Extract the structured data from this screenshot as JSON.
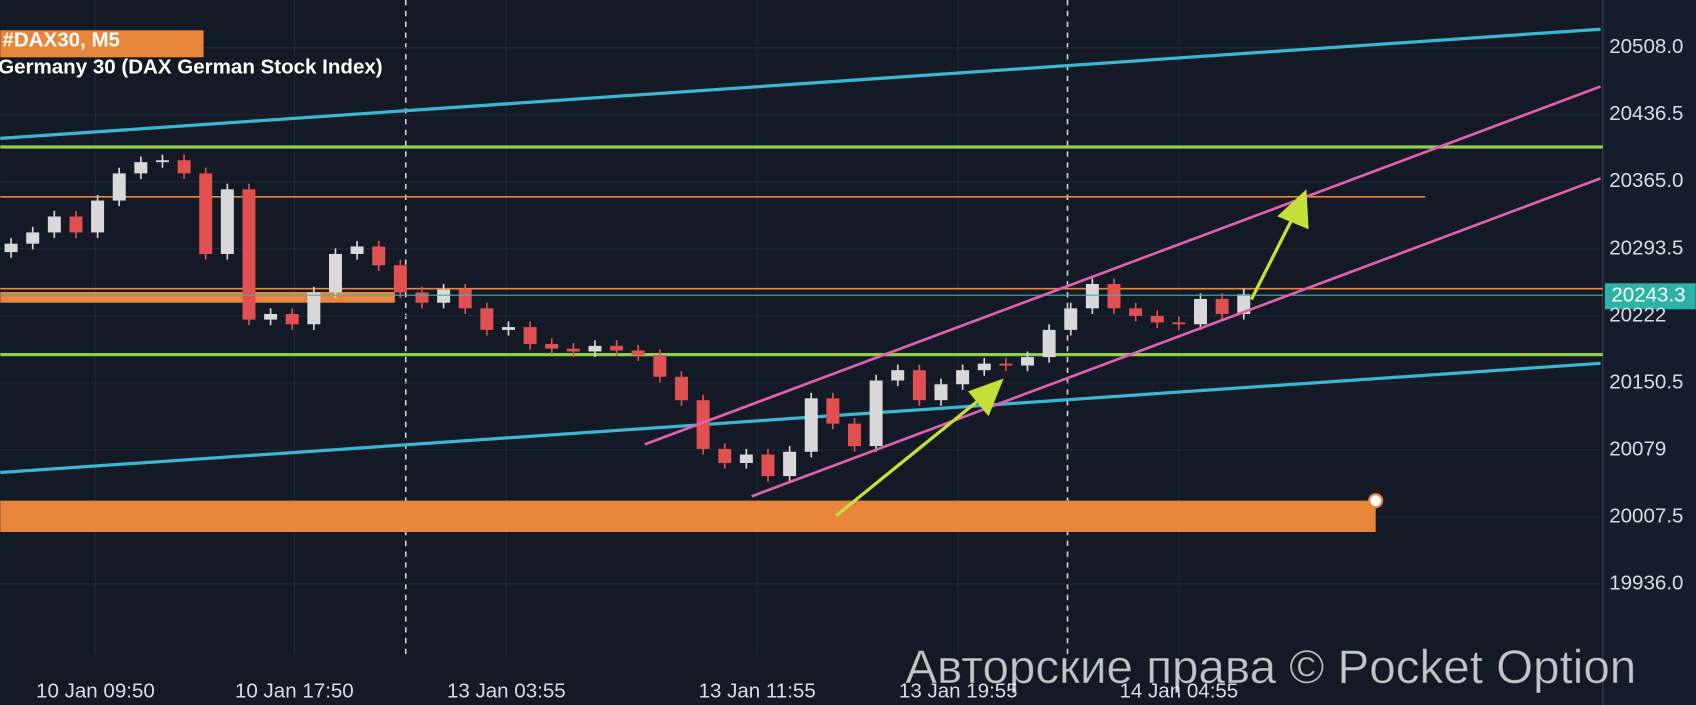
{
  "chart_data": {
    "type": "candlestick",
    "title": "#DAX30, M5",
    "subtitle": "Germany 30 (DAX German Stock Index)",
    "watermark": "Авторские права © Pocket Option",
    "current_price": 20243.3,
    "up_color": "#d9d9d9",
    "down_color": "#e05050",
    "xlim": [
      -0.5,
      73.5
    ],
    "xticks": [
      {
        "value": 3.9,
        "label": "10 Jan 09:50"
      },
      {
        "value": 13.1,
        "label": "10 Jan 17:50"
      },
      {
        "value": 22.9,
        "label": "13 Jan 03:55"
      },
      {
        "value": 34.5,
        "label": "13 Jan 11:55"
      },
      {
        "value": 43.8,
        "label": "13 Jan 19:55"
      },
      {
        "value": 54,
        "label": "14 Jan 04:55"
      }
    ],
    "ylim": [
      19861,
      20559
    ],
    "yticks": [
      {
        "value": 20508,
        "label": "20508.0"
      },
      {
        "value": 20436.5,
        "label": "20436.5"
      },
      {
        "value": 20365,
        "label": "20365.0"
      },
      20293.5,
      20222,
      {
        "value": 20222,
        "label": "20222.0"
      },
      20150.5,
      20079,
      20007.5,
      {
        "value": 19936,
        "label": "19936.0"
      }
    ],
    "open": [
      20290,
      20299,
      20311,
      20328,
      20311,
      20345,
      20374,
      20386,
      20388,
      20374,
      20288,
      20357,
      20218,
      20224,
      20213,
      20247,
      20288,
      20296,
      20276,
      20247,
      20236,
      20250,
      20230,
      20207,
      20210,
      20192,
      20187,
      20184,
      20190,
      20185,
      20180,
      20157,
      20132,
      20080,
      20065,
      20074,
      20051,
      20077,
      20134,
      20107,
      20083,
      20153,
      20164,
      20132,
      20149,
      20164,
      20171,
      20169,
      20178,
      20207,
      20230,
      20256,
      20230,
      20222,
      20215,
      20213,
      20240,
      20224
    ],
    "high": [
      20305,
      20317,
      20334,
      20334,
      20351,
      20380,
      20392,
      20394,
      20394,
      20380,
      20363,
      20363,
      20230,
      20230,
      20253,
      20294,
      20302,
      20302,
      20282,
      20253,
      20256,
      20256,
      20236,
      20216,
      20216,
      20198,
      20193,
      20196,
      20196,
      20191,
      20186,
      20163,
      20138,
      20086,
      20080,
      20080,
      20083,
      20140,
      20140,
      20113,
      20159,
      20170,
      20170,
      20155,
      20170,
      20177,
      20177,
      20184,
      20213,
      20236,
      20262,
      20262,
      20236,
      20228,
      20221,
      20246,
      20246,
      20251
    ],
    "low": [
      20284,
      20293,
      20305,
      20305,
      20305,
      20339,
      20368,
      20380,
      20368,
      20282,
      20282,
      20212,
      20212,
      20207,
      20207,
      20241,
      20282,
      20270,
      20241,
      20230,
      20230,
      20224,
      20201,
      20201,
      20186,
      20181,
      20178,
      20178,
      20179,
      20174,
      20151,
      20126,
      20074,
      20059,
      20059,
      20045,
      20045,
      20071,
      20101,
      20077,
      20077,
      20147,
      20126,
      20126,
      20143,
      20158,
      20163,
      20163,
      20172,
      20201,
      20224,
      20224,
      20216,
      20209,
      20207,
      20207,
      20218,
      20218
    ],
    "close": [
      20299,
      20311,
      20328,
      20311,
      20345,
      20374,
      20386,
      20388,
      20374,
      20288,
      20357,
      20218,
      20224,
      20213,
      20247,
      20288,
      20296,
      20276,
      20247,
      20236,
      20250,
      20230,
      20207,
      20210,
      20192,
      20187,
      20184,
      20190,
      20185,
      20180,
      20157,
      20132,
      20080,
      20065,
      20074,
      20051,
      20077,
      20134,
      20107,
      20083,
      20153,
      20164,
      20132,
      20149,
      20164,
      20171,
      20169,
      20178,
      20207,
      20230,
      20256,
      20230,
      20222,
      20215,
      20213,
      20240,
      20224,
      20245
    ]
  }
}
